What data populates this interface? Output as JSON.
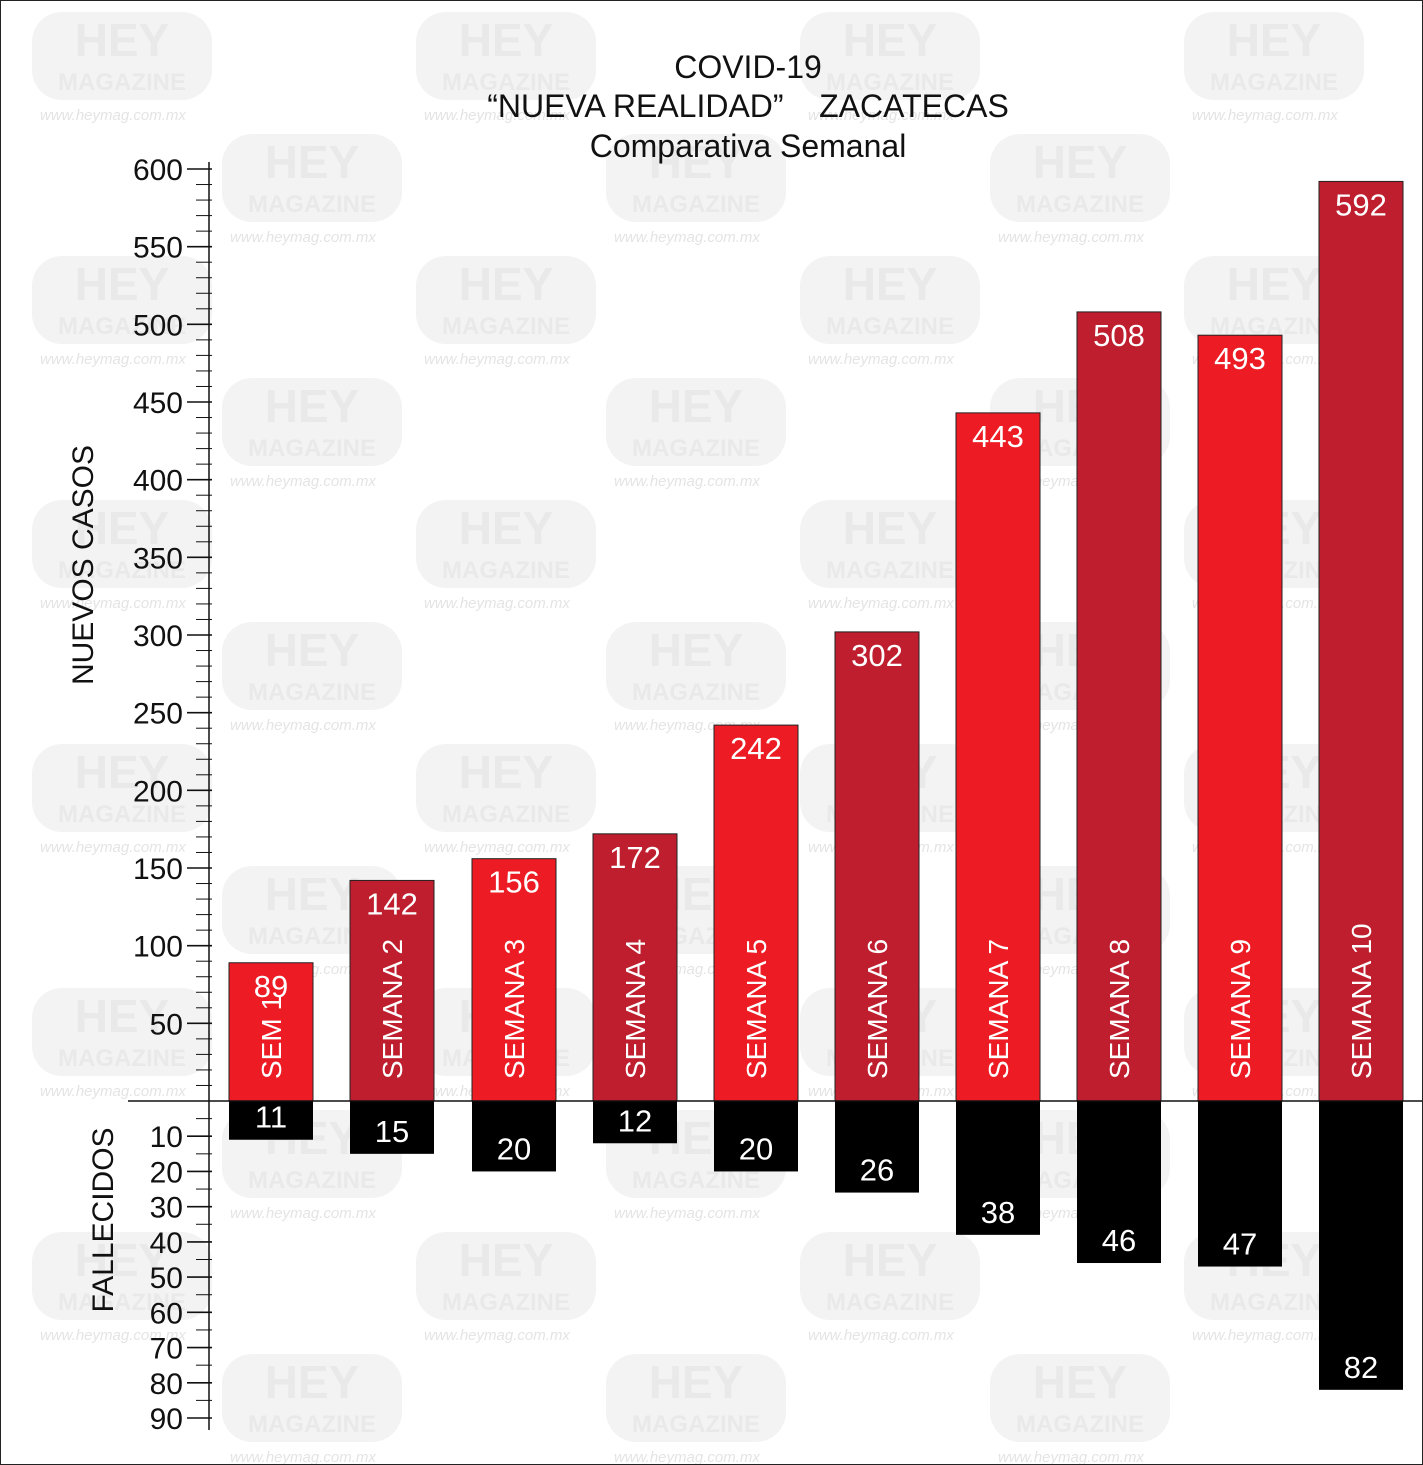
{
  "chart_data": {
    "type": "bar",
    "title": [
      "COVID-19",
      "“NUEVA REALIDAD”    ZACATECAS",
      "Comparativa Semanal"
    ],
    "categories": [
      "SEM 1",
      "SEMANA 2",
      "SEMANA 3",
      "SEMANA 4",
      "SEMANA 5",
      "SEMANA 6",
      "SEMANA 7",
      "SEMANA 8",
      "SEMANA 9",
      "SEMANA 10"
    ],
    "series": [
      {
        "name": "NUEVOS CASOS",
        "values": [
          89,
          142,
          156,
          172,
          242,
          302,
          443,
          508,
          493,
          592
        ],
        "colors": [
          "#ed1c24",
          "#be1e2d",
          "#ed1c24",
          "#be1e2d",
          "#ed1c24",
          "#be1e2d",
          "#ed1c24",
          "#be1e2d",
          "#ed1c24",
          "#be1e2d"
        ]
      },
      {
        "name": "FALLECIDOS",
        "values": [
          11,
          15,
          20,
          12,
          20,
          26,
          38,
          46,
          47,
          82
        ],
        "color": "#000000"
      }
    ],
    "ylabel_top": "NUEVOS CASOS",
    "ylabel_bottom": "FALLECIDOS",
    "yticks_top": [
      "50",
      "100",
      "150",
      "200",
      "250",
      "300",
      "350",
      "400",
      "450",
      "500",
      "550",
      "600"
    ],
    "yticks_bottom": [
      "10",
      "20",
      "30",
      "40",
      "50",
      "60",
      "70",
      "80",
      "90"
    ],
    "ylim_top": [
      0,
      600
    ],
    "ylim_bottom": [
      0,
      90
    ],
    "grid": false,
    "legend": "none"
  },
  "watermark": {
    "logo_line1": "HEY",
    "logo_line2": "MAGAZINE",
    "url": "www.heymag.com.mx"
  }
}
